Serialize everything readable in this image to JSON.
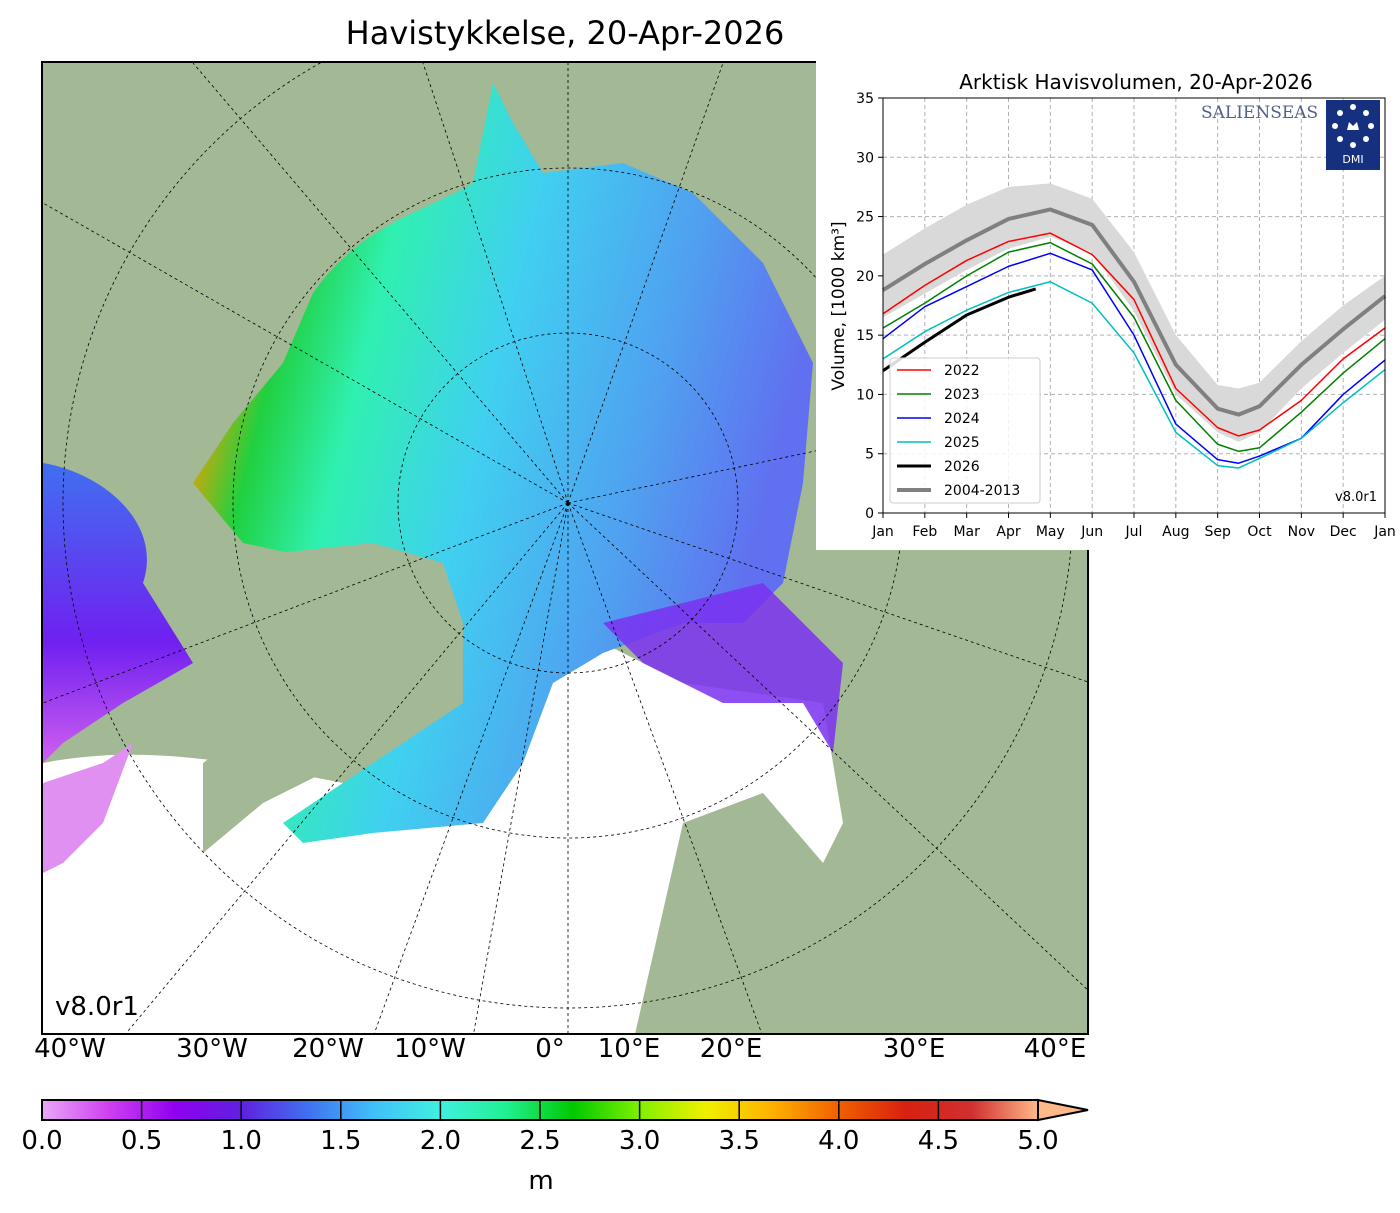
{
  "map": {
    "title": "Havistykkelse, 20-Apr-2026",
    "version": "v8.0r1",
    "longitude_labels": [
      "40°W",
      "30°W",
      "20°W",
      "10°W",
      "0°",
      "10°E",
      "20°E",
      "30°E",
      "40°E"
    ],
    "land_color": "#a3b894",
    "river_color": "#8fa8e8"
  },
  "colorbar": {
    "unit": "m",
    "ticks": [
      "0.0",
      "0.5",
      "1.0",
      "1.5",
      "2.0",
      "2.5",
      "3.0",
      "3.5",
      "4.0",
      "4.5",
      "5.0"
    ],
    "range": [
      0,
      5
    ],
    "extend": "max",
    "colors": [
      "#e8a8f8",
      "#d040f0",
      "#9000f0",
      "#6020e0",
      "#4070f0",
      "#40c0f8",
      "#40f0e0",
      "#20f090",
      "#00c800",
      "#80f000",
      "#f0f000",
      "#ffb000",
      "#f06000",
      "#d82010",
      "#d03030",
      "#ffb888"
    ]
  },
  "chart_data": {
    "type": "line",
    "title": "Arktisk Havisvolumen, 20-Apr-2026",
    "ylabel": "Volume, [1000 km³]",
    "xlabel": "",
    "x_tick_labels": [
      "Jan",
      "Feb",
      "Mar",
      "Apr",
      "May",
      "Jun",
      "Jul",
      "Aug",
      "Sep",
      "Oct",
      "Nov",
      "Dec",
      "Jan"
    ],
    "y_ticks": [
      "0",
      "5",
      "10",
      "15",
      "20",
      "25",
      "30",
      "35"
    ],
    "ylim": [
      0,
      35
    ],
    "grid": true,
    "legend_position": "lower-left",
    "version": "v8.0r1",
    "logos": [
      "SALIENSEAS",
      "DMI"
    ],
    "x_month_index": [
      0,
      1,
      2,
      3,
      4,
      5,
      6,
      7,
      8,
      8.5,
      9,
      10,
      11,
      12
    ],
    "series": [
      {
        "name": "2022",
        "color": "#ff0000",
        "values": [
          16.8,
          19.2,
          21.3,
          22.9,
          23.6,
          21.8,
          18.0,
          10.5,
          7.2,
          6.5,
          7.0,
          9.5,
          13.0,
          15.6
        ]
      },
      {
        "name": "2023",
        "color": "#008000",
        "values": [
          15.6,
          17.7,
          20.0,
          22.0,
          22.8,
          21.0,
          16.5,
          9.5,
          5.8,
          5.2,
          5.5,
          8.5,
          11.8,
          14.7
        ]
      },
      {
        "name": "2024",
        "color": "#0000ff",
        "values": [
          14.7,
          17.4,
          19.1,
          20.8,
          21.9,
          20.5,
          15.0,
          7.5,
          4.5,
          4.2,
          4.8,
          6.3,
          10.0,
          12.9
        ]
      },
      {
        "name": "2025",
        "color": "#00bfbf",
        "values": [
          13.0,
          15.3,
          17.1,
          18.6,
          19.5,
          17.7,
          13.5,
          6.8,
          4.0,
          3.8,
          4.6,
          6.3,
          9.3,
          12.1
        ]
      },
      {
        "name": "2026",
        "color": "#000000",
        "x_month_index": [
          0,
          1,
          2,
          3,
          3.65
        ],
        "values": [
          12.0,
          14.4,
          16.7,
          18.2,
          18.9
        ]
      },
      {
        "name": "2004-2013",
        "color": "#808080",
        "values": [
          18.8,
          21.0,
          23.0,
          24.8,
          25.6,
          24.3,
          19.5,
          12.5,
          8.8,
          8.3,
          9.0,
          12.5,
          15.5,
          18.3
        ],
        "band_upper": [
          21.8,
          24.0,
          26.0,
          27.5,
          27.8,
          26.5,
          22.0,
          15.0,
          10.8,
          10.5,
          11.0,
          14.5,
          17.5,
          20.0
        ],
        "band_lower": [
          16.5,
          18.5,
          20.5,
          22.3,
          23.3,
          22.0,
          17.0,
          10.0,
          6.8,
          6.0,
          6.8,
          10.5,
          13.5,
          16.3
        ]
      }
    ]
  }
}
